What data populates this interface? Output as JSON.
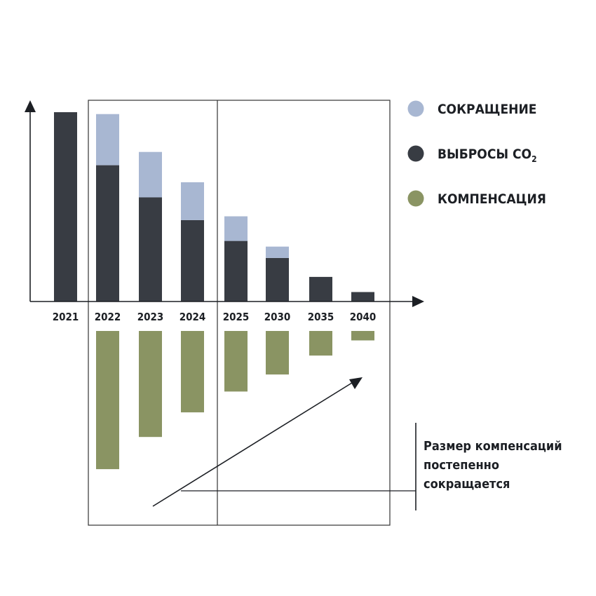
{
  "colors": {
    "reduction": "#a8b7d2",
    "emissions": "#383c43",
    "compensation": "#8a9463",
    "axis": "#1c1f24",
    "frame": "#333333"
  },
  "legend": [
    {
      "key": "reduction",
      "label": "СОКРАЩЕНИЕ",
      "sub": ""
    },
    {
      "key": "emissions",
      "label": "ВЫБРОСЫ CO",
      "sub": "2"
    },
    {
      "key": "compensation",
      "label": "КОМПЕНСАЦИЯ",
      "sub": ""
    }
  ],
  "annotation": {
    "lines": [
      "Размер компенсаций",
      "постепенно",
      "сокращается"
    ]
  },
  "chart_data": {
    "type": "bar",
    "categories": [
      "2021",
      "2022",
      "2023",
      "2024",
      "2025",
      "2030",
      "2035",
      "2040"
    ],
    "series": [
      {
        "key": "emissions",
        "name": "ВЫБРОСЫ CO2",
        "values": [
          100,
          72,
          55,
          43,
          32,
          23,
          13,
          5
        ]
      },
      {
        "key": "reduction",
        "name": "СОКРАЩЕНИЕ",
        "values": [
          0,
          27,
          24,
          20,
          13,
          6,
          0,
          0
        ]
      },
      {
        "key": "compensation",
        "name": "КОМПЕНСАЦИЯ",
        "values": [
          0,
          -73,
          -56,
          -43,
          -32,
          -23,
          -13,
          -5
        ]
      }
    ],
    "ylim": [
      -100,
      100
    ],
    "stacked": true
  }
}
